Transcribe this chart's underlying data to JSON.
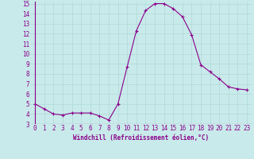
{
  "x": [
    0,
    1,
    2,
    3,
    4,
    5,
    6,
    7,
    8,
    9,
    10,
    11,
    12,
    13,
    14,
    15,
    16,
    17,
    18,
    19,
    20,
    21,
    22,
    23
  ],
  "y": [
    5.0,
    4.5,
    4.0,
    3.9,
    4.1,
    4.1,
    4.1,
    3.8,
    3.4,
    5.0,
    8.7,
    12.3,
    14.3,
    15.0,
    15.0,
    14.5,
    13.7,
    11.9,
    8.9,
    8.2,
    7.5,
    6.7,
    6.5,
    6.4
  ],
  "line_color": "#8B008B",
  "marker": "+",
  "marker_size": 3,
  "marker_linewidth": 0.8,
  "line_width": 0.8,
  "bg_color": "#c8eaea",
  "grid_color": "#b0d8d8",
  "xlabel": "Windchill (Refroidissement éolien,°C)",
  "xlabel_color": "#8B008B",
  "tick_color": "#8B008B",
  "ylim": [
    3,
    15
  ],
  "xlim": [
    -0.5,
    23.5
  ],
  "yticks": [
    3,
    4,
    5,
    6,
    7,
    8,
    9,
    10,
    11,
    12,
    13,
    14,
    15
  ],
  "xticks": [
    0,
    1,
    2,
    3,
    4,
    5,
    6,
    7,
    8,
    9,
    10,
    11,
    12,
    13,
    14,
    15,
    16,
    17,
    18,
    19,
    20,
    21,
    22,
    23
  ],
  "xlabel_fontsize": 5.5,
  "tick_fontsize": 5.5
}
